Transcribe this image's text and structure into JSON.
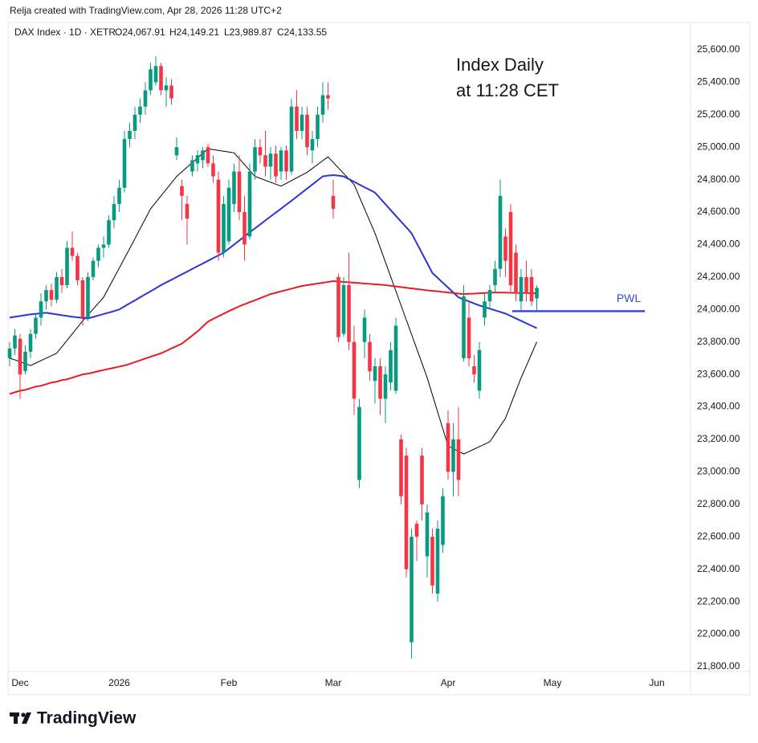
{
  "header": "Relja created with TradingView.com, Apr 28, 2026 11:28 UTC+2",
  "legend": {
    "symbol": "DAX Index · 1D · XETR",
    "open": "O24,067.91",
    "high": "H24,149.21",
    "low": "L23,989.87",
    "close": "C24,133.55"
  },
  "brand": "TradingView",
  "chart_data": {
    "type": "candlestick",
    "annotations": [
      "Index Daily",
      "at 11:28 CET"
    ],
    "up_color": "#089981",
    "down_color": "#f23645",
    "ylim": [
      21770,
      25768
    ],
    "yticks": [
      {
        "value": 21800,
        "label": "21,800.00"
      },
      {
        "value": 22000,
        "label": "22,000.00"
      },
      {
        "value": 22200,
        "label": "22,200.00"
      },
      {
        "value": 22400,
        "label": "22,400.00"
      },
      {
        "value": 22600,
        "label": "22,600.00"
      },
      {
        "value": 22800,
        "label": "22,800.00"
      },
      {
        "value": 23000,
        "label": "23,000.00"
      },
      {
        "value": 23200,
        "label": "23,200.00"
      },
      {
        "value": 23400,
        "label": "23,400.00"
      },
      {
        "value": 23600,
        "label": "23,600.00"
      },
      {
        "value": 23800,
        "label": "23,800.00"
      },
      {
        "value": 24000,
        "label": "24,000.00"
      },
      {
        "value": 24200,
        "label": "24,200.00"
      },
      {
        "value": 24400,
        "label": "24,400.00"
      },
      {
        "value": 24600,
        "label": "24,600.00"
      },
      {
        "value": 24800,
        "label": "24,800.00"
      },
      {
        "value": 25000,
        "label": "25,000.00"
      },
      {
        "value": 25200,
        "label": "25,200.00"
      },
      {
        "value": 25400,
        "label": "25,400.00"
      },
      {
        "value": 25600,
        "label": "25,600.00"
      }
    ],
    "categories": [
      null,
      null,
      "Dec",
      null,
      null,
      null,
      null,
      null,
      null,
      null,
      null,
      null,
      null,
      null,
      null,
      null,
      null,
      null,
      null,
      null,
      null,
      "2026",
      null,
      null,
      null,
      null,
      null,
      null,
      null,
      null,
      null,
      null,
      null,
      null,
      null,
      null,
      null,
      null,
      null,
      null,
      null,
      null,
      "Feb",
      null,
      null,
      null,
      null,
      null,
      null,
      null,
      null,
      null,
      null,
      null,
      null,
      null,
      null,
      null,
      null,
      null,
      null,
      null,
      "Mar",
      null,
      null,
      null,
      null,
      null,
      null,
      null,
      null,
      null,
      null,
      null,
      null,
      null,
      null,
      null,
      null,
      null,
      null,
      null,
      null,
      null,
      "Apr",
      null,
      null,
      null,
      null,
      null,
      null,
      null,
      null,
      null,
      null,
      null,
      null,
      null,
      null,
      null,
      null,
      null,
      null,
      null,
      "May",
      null,
      null,
      null,
      null,
      null,
      null,
      null,
      null,
      null,
      null,
      null,
      null,
      null,
      null,
      null,
      null,
      null,
      null,
      null,
      "Jun"
    ],
    "open": [
      23700,
      23760,
      23820,
      23620,
      23740,
      23850,
      23950,
      24050,
      24120,
      24060,
      24200,
      24150,
      24380,
      24330,
      24180,
      23950,
      24200,
      24300,
      24380,
      24400,
      24550,
      24650,
      24750,
      25050,
      25100,
      25200,
      25250,
      25350,
      25400,
      25500,
      25350,
      25380,
      24950,
      24760,
      24650,
      24850,
      24900,
      24920,
      25000,
      24900,
      24800,
      24350,
      24420,
      24650,
      24850,
      24600,
      24450,
      24850,
      25000,
      24950,
      24880,
      24960,
      24850,
      24980,
      24850,
      25250,
      25100,
      25200,
      24980,
      25050,
      25200,
      25320,
      24700,
      24200,
      23850,
      24150,
      23800,
      22950,
      23800,
      23800,
      23560,
      23650,
      23450,
      23550,
      23500,
      23200,
      23100,
      21950,
      22680,
      23100,
      22480,
      22600,
      22250,
      22550,
      23300,
      23000,
      23200,
      23700,
      23950,
      23650,
      23500,
      23950,
      24050,
      24150,
      24250,
      24450,
      24600,
      24350,
      24050,
      24200,
      24200,
      24067.91,
      null,
      null,
      null,
      null,
      null,
      null,
      null,
      null,
      null,
      null,
      null,
      null,
      null,
      null,
      null,
      null,
      null,
      null,
      null,
      null,
      null,
      null,
      null
    ],
    "high": [
      23800,
      23880,
      23850,
      23780,
      23880,
      23980,
      24100,
      24150,
      24160,
      24230,
      24250,
      24420,
      24480,
      24350,
      24200,
      24230,
      24320,
      24400,
      24450,
      24580,
      24700,
      24800,
      25100,
      25150,
      25250,
      25300,
      25400,
      25520,
      25560,
      25520,
      25430,
      25420,
      25060,
      24800,
      24700,
      24950,
      24980,
      25000,
      25020,
      24950,
      24850,
      24700,
      24800,
      24900,
      24950,
      24700,
      24900,
      25050,
      25050,
      25100,
      25000,
      25010,
      25000,
      25010,
      25300,
      25350,
      25250,
      25250,
      25100,
      25250,
      25400,
      25400,
      24800,
      24220,
      24200,
      24350,
      23900,
      23450,
      24000,
      23850,
      23700,
      23700,
      23650,
      23800,
      23950,
      23230,
      23150,
      22650,
      22700,
      23150,
      22800,
      22650,
      22700,
      22900,
      23380,
      23300,
      23400,
      24150,
      24050,
      23720,
      23800,
      24100,
      24150,
      24300,
      24800,
      24500,
      24650,
      24400,
      24250,
      24300,
      24250,
      24149.21,
      null,
      null,
      null,
      null,
      null,
      null,
      null,
      null,
      null,
      null,
      null,
      null,
      null,
      null,
      null,
      null,
      null,
      null,
      null,
      null,
      null,
      null,
      null
    ],
    "low": [
      23650,
      23720,
      23450,
      23600,
      23700,
      23820,
      23900,
      24000,
      24020,
      24040,
      24100,
      24130,
      24300,
      24150,
      23900,
      23930,
      24180,
      24260,
      24320,
      24380,
      24500,
      24600,
      24720,
      25000,
      25050,
      25150,
      25200,
      25320,
      25380,
      25320,
      25250,
      25260,
      24920,
      24550,
      24400,
      24820,
      24850,
      24870,
      24880,
      24780,
      24300,
      24320,
      24400,
      24600,
      24550,
      24300,
      24430,
      24800,
      24900,
      24820,
      24800,
      24780,
      24800,
      24800,
      24830,
      25050,
      25050,
      24950,
      24900,
      25000,
      25150,
      25230,
      24560,
      23800,
      23830,
      23750,
      23350,
      22900,
      23700,
      23560,
      23420,
      23350,
      23300,
      23500,
      23480,
      22800,
      22350,
      21850,
      22450,
      22700,
      22350,
      22250,
      22200,
      22500,
      22950,
      22850,
      22850,
      23680,
      23650,
      23550,
      23450,
      23900,
      24000,
      24100,
      24200,
      24200,
      24100,
      24050,
      23990,
      24050,
      24020,
      23989.87,
      null,
      null,
      null,
      null,
      null,
      null,
      null,
      null,
      null,
      null,
      null,
      null,
      null,
      null,
      null,
      null,
      null,
      null,
      null,
      null,
      null,
      null,
      null
    ],
    "close": [
      23760,
      23840,
      23600,
      23740,
      23850,
      23950,
      24050,
      24120,
      24060,
      24200,
      24150,
      24380,
      24330,
      24180,
      23950,
      24200,
      24300,
      24380,
      24400,
      24550,
      24650,
      24750,
      25050,
      25100,
      25200,
      25250,
      25350,
      25480,
      25500,
      25350,
      25380,
      25300,
      25000,
      24700,
      24560,
      24920,
      24950,
      24980,
      24900,
      24820,
      24350,
      24650,
      24750,
      24850,
      24600,
      24400,
      24850,
      25000,
      24950,
      24880,
      24960,
      24820,
      24980,
      24850,
      25250,
      25100,
      25200,
      25000,
      25050,
      25200,
      25320,
      25300,
      24620,
      23830,
      24150,
      23800,
      23450,
      23400,
      23950,
      23620,
      23650,
      23450,
      23600,
      23750,
      23900,
      22850,
      22400,
      22600,
      22600,
      22800,
      22750,
      22300,
      22650,
      22850,
      23000,
      23200,
      22950,
      24080,
      23700,
      23600,
      23750,
      24050,
      24120,
      24250,
      24700,
      24300,
      24150,
      24100,
      24200,
      24100,
      24050,
      24133.55,
      null,
      null,
      null,
      null,
      null,
      null,
      null,
      null,
      null,
      null,
      null,
      null,
      null,
      null,
      null,
      null,
      null,
      null,
      null,
      null,
      null,
      null,
      null
    ],
    "lines": [
      {
        "color": "#000000",
        "values": [
          23700,
          23690,
          23678,
          23666,
          23655,
          23670,
          23685,
          23700,
          23715,
          23730,
          23770,
          23810,
          23850,
          23890,
          23930,
          23966,
          24003,
          24039,
          24075,
          24135,
          24195,
          24255,
          24315,
          24375,
          24436,
          24498,
          24559,
          24620,
          24660,
          24700,
          24740,
          24780,
          24820,
          24848,
          24877,
          24905,
          24933,
          24962,
          24990,
          24985,
          24980,
          24975,
          24970,
          24965,
          24929,
          24893,
          24856,
          24820,
          24808,
          24796,
          24784,
          24772,
          24760,
          24777,
          24794,
          24811,
          24828,
          24845,
          24869,
          24893,
          24917,
          24940,
          24906,
          24872,
          24838,
          24804,
          24770,
          24695,
          24620,
          24545,
          24470,
          24381,
          24292,
          24203,
          24114,
          24025,
          23936,
          23847,
          23758,
          23669,
          23580,
          23475,
          23370,
          23265,
          23160,
          23143,
          23127,
          23110,
          23125,
          23140,
          23155,
          23170,
          23185,
          23233,
          23282,
          23330,
          23413,
          23497,
          23580,
          23653,
          23727,
          23800,
          null,
          null,
          null,
          null,
          null,
          null,
          null,
          null,
          null,
          null,
          null,
          null,
          null,
          null,
          null,
          null,
          null,
          null,
          null,
          null,
          null,
          null,
          null
        ]
      },
      {
        "color": "#2a35d8",
        "values": [
          23950,
          23955,
          23960,
          23965,
          23970,
          23973,
          23977,
          23980,
          23975,
          23970,
          23965,
          23960,
          23955,
          23952,
          23948,
          23945,
          23954,
          23963,
          23972,
          23981,
          23990,
          24000,
          24019,
          24038,
          24056,
          24075,
          24094,
          24112,
          24131,
          24150,
          24167,
          24183,
          24200,
          24217,
          24233,
          24250,
          24267,
          24283,
          24300,
          24317,
          24333,
          24350,
          24375,
          24400,
          24425,
          24450,
          24475,
          24500,
          24524,
          24549,
          24573,
          24597,
          24621,
          24646,
          24670,
          24695,
          24720,
          24745,
          24770,
          24795,
          24820,
          24825,
          24828,
          24825,
          24820,
          24803,
          24787,
          24770,
          24753,
          24737,
          24720,
          24684,
          24649,
          24613,
          24577,
          24541,
          24506,
          24470,
          24409,
          24348,
          24286,
          24225,
          24195,
          24165,
          24135,
          24105,
          24075,
          24062,
          24050,
          24037,
          24025,
          24015,
          24005,
          23995,
          23985,
          23975,
          23960,
          23945,
          23930,
          23915,
          23900,
          23885,
          null,
          null,
          null,
          null,
          null,
          null,
          null,
          null,
          null,
          null,
          null,
          null,
          null,
          null,
          null,
          null,
          null,
          null,
          null,
          null,
          null,
          null,
          null
        ]
      },
      {
        "color": "#e51c23",
        "values": [
          23480,
          23490,
          23500,
          23505,
          23515,
          23525,
          23530,
          23540,
          23550,
          23555,
          23565,
          23570,
          23580,
          23590,
          23600,
          23605,
          23612,
          23620,
          23627,
          23634,
          23641,
          23648,
          23655,
          23665,
          23676,
          23687,
          23698,
          23709,
          23720,
          23730,
          23745,
          23760,
          23775,
          23790,
          23815,
          23840,
          23865,
          23895,
          23925,
          23942,
          23958,
          23974,
          23990,
          24005,
          24020,
          24032,
          24045,
          24057,
          24070,
          24082,
          24095,
          24103,
          24112,
          24120,
          24128,
          24137,
          24145,
          24150,
          24155,
          24160,
          24165,
          24170,
          24175,
          24173,
          24170,
          24168,
          24165,
          24163,
          24160,
          24158,
          24155,
          24153,
          24150,
          24146,
          24142,
          24138,
          24134,
          24130,
          24126,
          24122,
          24118,
          24115,
          24112,
          24108,
          24105,
          24102,
          24098,
          24095,
          24097,
          24098,
          24100,
          24102,
          24103,
          24105,
          24104,
          24104,
          24103,
          24102,
          24102,
          24101,
          24100,
          24100,
          null,
          null,
          null,
          null,
          null,
          null,
          null,
          null,
          null,
          null,
          null,
          null,
          null,
          null,
          null,
          null,
          null,
          null,
          null,
          null,
          null,
          null,
          null
        ]
      }
    ],
    "levels": [
      {
        "label": "PWL",
        "value": 23990,
        "color": "#3a47e0"
      }
    ]
  }
}
